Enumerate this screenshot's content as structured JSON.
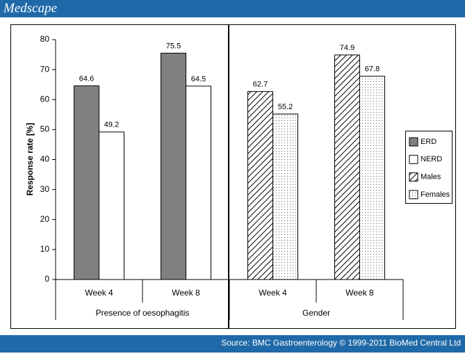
{
  "page_header": {
    "logo": "Medscape"
  },
  "chart_data": {
    "type": "bar",
    "y_label": "Response rate [%]",
    "categories": [
      "Week 4",
      "Week 8",
      "Week 4",
      "Week 8"
    ],
    "group_labels": [
      "Presence of oesophagitis",
      "Gender"
    ],
    "series": [
      {
        "name": "ERD",
        "color": "#808080",
        "fill_style": "solid",
        "values": [
          64.6,
          75.5,
          null,
          null
        ]
      },
      {
        "name": "NERD",
        "color": "#ffffff",
        "fill_style": "solid",
        "values": [
          49.2,
          64.5,
          null,
          null
        ]
      },
      {
        "name": "Males",
        "color": "#000000",
        "fill_style": "hatch",
        "values": [
          null,
          null,
          62.7,
          74.9
        ]
      },
      {
        "name": "Females",
        "color": "#000000",
        "fill_style": "dots",
        "values": [
          null,
          null,
          55.2,
          67.8
        ]
      }
    ],
    "ylim": [
      0,
      80
    ],
    "yticks": [
      0,
      10,
      20,
      30,
      40,
      50,
      60,
      70,
      80
    ],
    "legend": "right"
  },
  "page_footer": {
    "source": "Source: BMC Gastroenterology © 1999-2011 BioMed Central Ltd"
  }
}
